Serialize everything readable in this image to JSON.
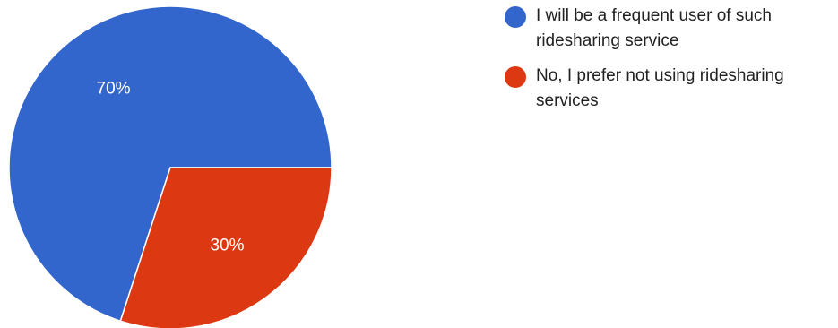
{
  "chart_data": {
    "type": "pie",
    "title": "",
    "slices": [
      {
        "label": "I will be a frequent user of such ridesharing service",
        "value": 70,
        "display": "70%",
        "color": "#3366cc"
      },
      {
        "label": "No, I prefer not using ridesharing services",
        "value": 30,
        "display": "30%",
        "color": "#dc3912"
      }
    ],
    "legend_position": "right",
    "start_angle_deg": 0,
    "direction": "counterclockwise"
  }
}
